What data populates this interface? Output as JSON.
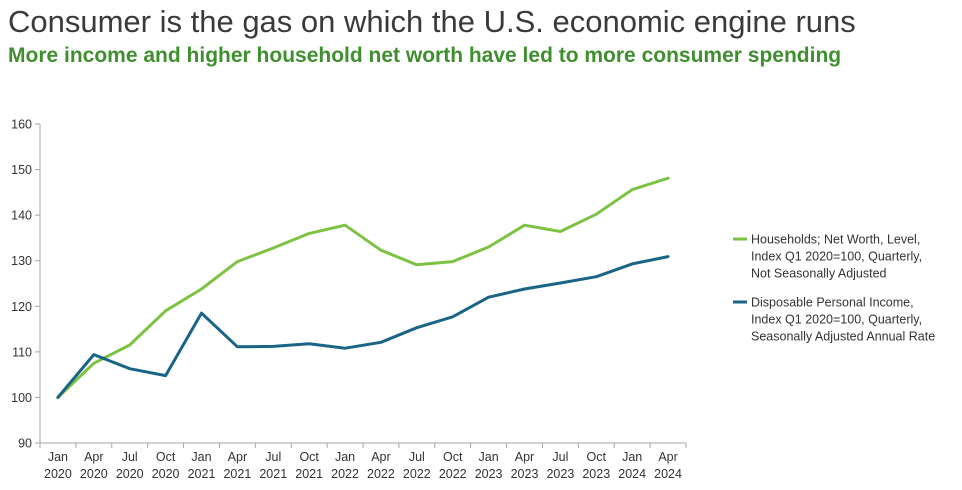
{
  "title": "Consumer is the gas on which the U.S. economic engine runs",
  "subtitle": "More income and higher household net worth have led to more consumer spending",
  "chart_data": {
    "type": "line",
    "x": [
      "Jan 2020",
      "Apr 2020",
      "Jul 2020",
      "Oct 2020",
      "Jan 2021",
      "Apr 2021",
      "Jul 2021",
      "Oct 2021",
      "Jan 2022",
      "Apr 2022",
      "Jul 2022",
      "Oct 2022",
      "Jan 2023",
      "Apr 2023",
      "Jul 2023",
      "Oct 2023",
      "Jan 2024",
      "Apr 2024"
    ],
    "x_ticks": [
      [
        "Jan",
        "2020"
      ],
      [
        "Apr",
        "2020"
      ],
      [
        "Jul",
        "2020"
      ],
      [
        "Oct",
        "2020"
      ],
      [
        "Jan",
        "2021"
      ],
      [
        "Apr",
        "2021"
      ],
      [
        "Jul",
        "2021"
      ],
      [
        "Oct",
        "2021"
      ],
      [
        "Jan",
        "2022"
      ],
      [
        "Apr",
        "2022"
      ],
      [
        "Jul",
        "2022"
      ],
      [
        "Oct",
        "2022"
      ],
      [
        "Jan",
        "2023"
      ],
      [
        "Apr",
        "2023"
      ],
      [
        "Jul",
        "2023"
      ],
      [
        "Oct",
        "2023"
      ],
      [
        "Jan",
        "2024"
      ],
      [
        "Apr",
        "2024"
      ]
    ],
    "ylim": [
      90,
      160
    ],
    "yticks": [
      90,
      100,
      110,
      120,
      130,
      140,
      150,
      160
    ],
    "grid": false,
    "legend_position": "right",
    "series": [
      {
        "name": "Households; Net Worth, Level, Index Q1 2020=100, Quarterly, Not Seasonally Adjusted",
        "legend_lines": [
          "Households; Net Worth, Level,",
          "Index Q1 2020=100, Quarterly,",
          "Not Seasonally Adjusted"
        ],
        "color": "#7dc242",
        "values": [
          100,
          107.5,
          111.5,
          119,
          123.8,
          129.8,
          132.8,
          136,
          137.8,
          132.3,
          129.1,
          129.8,
          133,
          137.8,
          136.4,
          140.2,
          145.6,
          148.1
        ]
      },
      {
        "name": "Disposable Personal Income, Index Q1 2020=100, Quarterly, Seasonally Adjusted Annual Rate",
        "legend_lines": [
          "Disposable Personal Income,",
          "Index Q1 2020=100, Quarterly,",
          "Seasonally Adjusted Annual Rate"
        ],
        "color": "#1a6585",
        "values": [
          100,
          109.4,
          106.3,
          104.8,
          118.5,
          111.1,
          111.2,
          111.8,
          110.8,
          112.1,
          115.3,
          117.7,
          122,
          123.8,
          125.1,
          126.5,
          129.3,
          130.9
        ]
      }
    ]
  }
}
